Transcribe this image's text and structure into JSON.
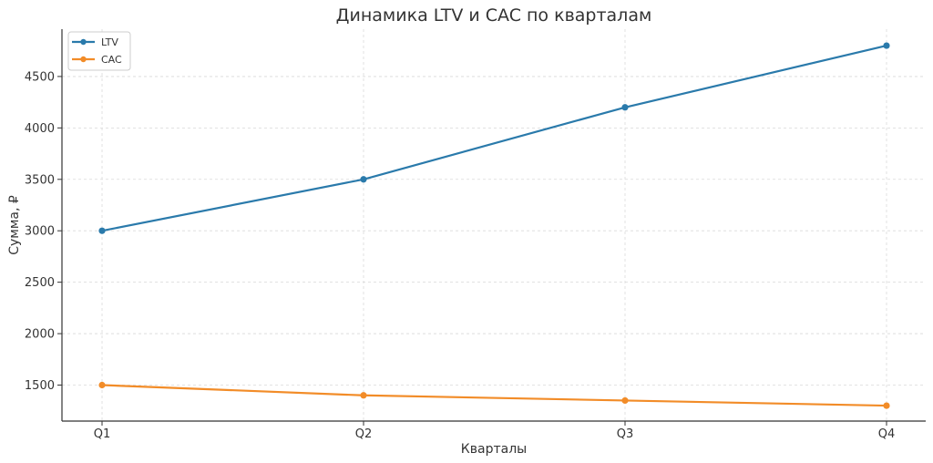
{
  "chart_data": {
    "type": "line",
    "title": "Динамика LTV и CAC по кварталам",
    "xlabel": "Кварталы",
    "ylabel": "Сумма, ₽",
    "categories": [
      "Q1",
      "Q2",
      "Q3",
      "Q4"
    ],
    "ylim": [
      1150,
      4960
    ],
    "yticks": [
      1500,
      2000,
      2500,
      3000,
      3500,
      4000,
      4500
    ],
    "grid": true,
    "legend_position": "top-left",
    "series": [
      {
        "name": "LTV",
        "color": "#2a7aab",
        "values": [
          3000,
          3500,
          4200,
          4800
        ]
      },
      {
        "name": "CAC",
        "color": "#f28c28",
        "values": [
          1500,
          1400,
          1350,
          1300
        ]
      }
    ]
  }
}
